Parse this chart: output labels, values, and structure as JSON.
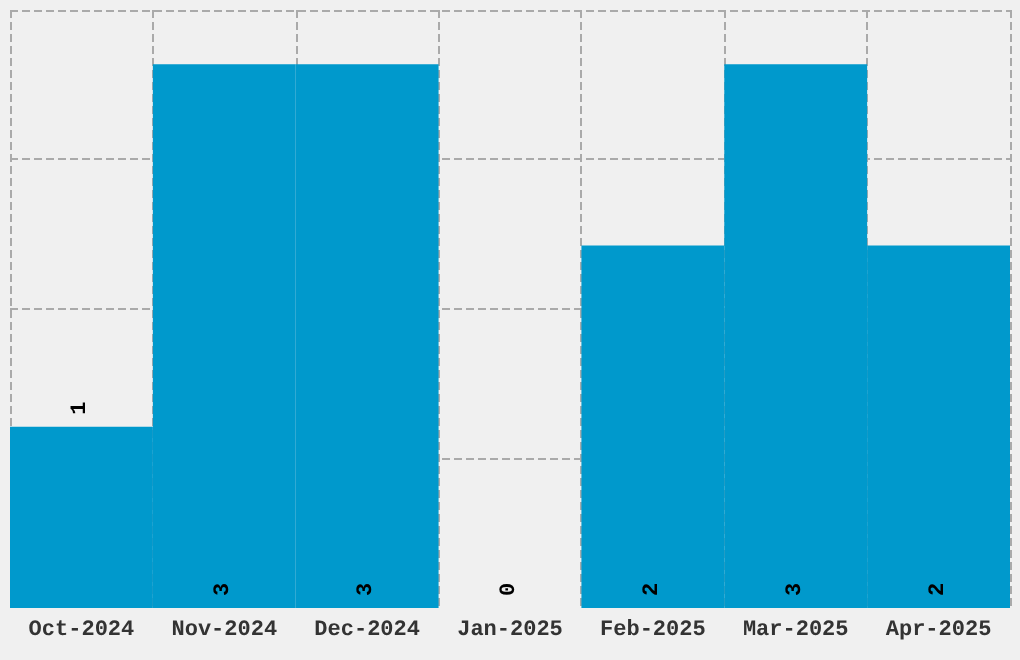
{
  "chart_data": {
    "type": "bar",
    "categories": [
      "Oct-2024",
      "Nov-2024",
      "Dec-2024",
      "Jan-2025",
      "Feb-2025",
      "Mar-2025",
      "Apr-2025"
    ],
    "values": [
      1,
      3,
      3,
      0,
      2,
      3,
      2
    ],
    "color": "#0099cc",
    "ylim": [
      0,
      3.3
    ],
    "yticks": [
      {
        "value": 0.825,
        "label": null
      },
      {
        "value": 1.65,
        "label": null
      },
      {
        "value": 2.475,
        "label": null
      },
      {
        "value": 3.3,
        "label": null
      }
    ],
    "tick_labels": "x",
    "grid": true,
    "data_labels": true
  }
}
